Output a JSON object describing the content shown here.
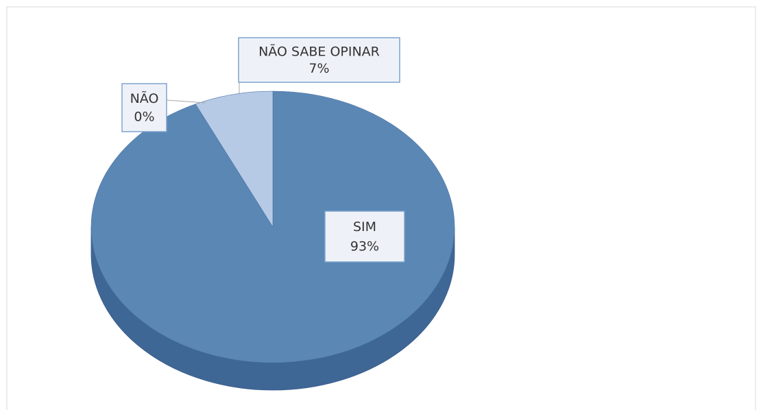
{
  "chart_data": {
    "type": "pie",
    "categories": [
      "SIM",
      "NÃO",
      "NÃO SABE OPINAR"
    ],
    "values": [
      93,
      0,
      7
    ],
    "value_labels": [
      "93%",
      "0%",
      "7%"
    ],
    "colors": [
      "#5b87b5",
      "#4a76a8",
      "#b6cae6"
    ]
  }
}
